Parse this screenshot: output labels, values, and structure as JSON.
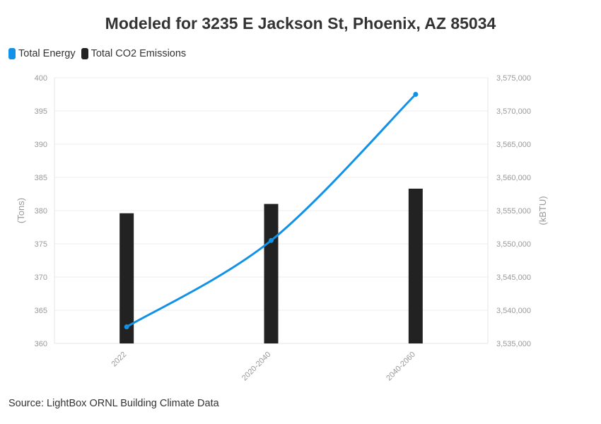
{
  "title": "Modeled for 3235 E Jackson St, Phoenix, AZ 85034",
  "source": "Source: LightBox ORNL Building Climate Data",
  "legend": [
    {
      "label": "Total Energy",
      "color": "#1192e8"
    },
    {
      "label": "Total CO2 Emissions",
      "color": "#222222"
    }
  ],
  "chart_data": {
    "type": "bar",
    "categories": [
      "2022",
      "2020-2040",
      "2040-2060"
    ],
    "series": [
      {
        "name": "Total CO2 Emissions",
        "type": "bar",
        "axis": "left",
        "color": "#222222",
        "values": [
          379.6,
          381.0,
          383.3
        ]
      },
      {
        "name": "Total Energy",
        "type": "line",
        "axis": "right",
        "color": "#1192e8",
        "values": [
          3537500,
          3550500,
          3572500
        ]
      }
    ],
    "ylabel_left": "(Tons)",
    "ylabel_right": "(kBTU)",
    "ylim_left": [
      360,
      400
    ],
    "ylim_right": [
      3535000,
      3575000
    ],
    "yticks_left": [
      "360",
      "365",
      "370",
      "375",
      "380",
      "385",
      "390",
      "395",
      "400"
    ],
    "yticks_right": [
      "3,535,000",
      "3,540,000",
      "3,545,000",
      "3,550,000",
      "3,555,000",
      "3,560,000",
      "3,565,000",
      "3,570,000",
      "3,575,000"
    ],
    "grid": true,
    "legend_position": "top-left"
  }
}
